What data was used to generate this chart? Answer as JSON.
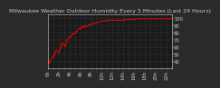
{
  "title": "Milwaukee Weather Outdoor Humidity Every 5 Minutes (Last 24 Hours)",
  "background_color": "#2a2a2a",
  "plot_bg_color": "#1a1a1a",
  "grid_color": "#555555",
  "line_color": "#ff0000",
  "ylim": [
    30,
    105
  ],
  "yticks": [
    40,
    50,
    60,
    70,
    80,
    90,
    100
  ],
  "humidity_values": [
    42,
    40,
    38,
    36,
    38,
    40,
    42,
    43,
    44,
    44,
    45,
    46,
    47,
    47,
    46,
    48,
    50,
    52,
    54,
    55,
    55,
    54,
    53,
    52,
    51,
    52,
    53,
    55,
    57,
    59,
    61,
    63,
    64,
    65,
    65,
    64,
    63,
    62,
    61,
    60,
    61,
    62,
    64,
    66,
    68,
    70,
    71,
    72,
    73,
    74,
    74,
    73,
    73,
    74,
    75,
    76,
    77,
    78,
    78,
    79,
    79,
    78,
    78,
    78,
    79,
    80,
    81,
    82,
    83,
    83,
    84,
    85,
    86,
    86,
    86,
    85,
    85,
    86,
    87,
    88,
    88,
    88,
    87,
    87,
    88,
    88,
    89,
    89,
    89,
    88,
    88,
    88,
    89,
    89,
    89,
    90,
    91,
    91,
    91,
    91,
    91,
    91,
    92,
    92,
    92,
    93,
    93,
    93,
    93,
    93,
    93,
    93,
    93,
    94,
    94,
    94,
    94,
    94,
    95,
    95,
    95,
    95,
    95,
    95,
    95,
    96,
    96,
    96,
    96,
    96,
    96,
    96,
    96,
    96,
    96,
    96,
    96,
    96,
    96,
    96,
    97,
    97,
    97,
    97,
    97,
    97,
    97,
    97,
    97,
    97,
    97,
    97,
    97,
    97,
    97,
    97,
    97,
    97,
    97,
    97,
    97,
    97,
    97,
    97,
    97,
    97,
    97,
    97,
    97,
    97,
    97,
    97,
    97,
    97,
    97,
    97,
    97,
    97,
    98,
    98,
    98,
    98,
    98,
    98,
    98,
    98,
    98,
    98,
    98,
    98,
    98,
    98,
    98,
    98,
    98,
    98,
    98,
    98,
    98,
    98,
    98,
    98,
    98,
    98,
    98,
    99,
    99,
    99,
    99,
    99,
    99,
    99,
    99,
    99,
    99,
    99,
    99,
    99,
    99,
    99,
    99,
    99,
    99,
    99,
    99,
    99,
    99,
    99,
    99,
    99,
    99,
    99,
    99,
    99,
    99,
    99,
    99,
    99,
    99,
    99,
    99,
    99,
    99,
    99,
    99,
    99,
    99,
    99,
    99,
    99,
    99,
    99,
    99,
    99,
    99,
    99,
    99,
    99,
    99,
    99,
    99,
    99,
    99,
    99,
    99,
    99,
    99,
    99,
    99,
    99,
    99,
    99,
    99,
    99,
    99,
    99,
    99,
    99,
    99,
    99,
    99,
    99,
    99,
    99,
    99,
    99,
    99,
    99,
    99
  ],
  "text_color": "#cccccc",
  "title_fontsize": 4.5,
  "tick_fontsize": 3.8,
  "line_width": 0.7,
  "num_xticks": 24,
  "xtick_labels": [
    "0h",
    "",
    "2h",
    "",
    "4h",
    "",
    "6h",
    "",
    "8h",
    "",
    "10h",
    "",
    "12h",
    "",
    "14h",
    "",
    "16h",
    "",
    "18h",
    "",
    "20h",
    "",
    "22h",
    ""
  ]
}
